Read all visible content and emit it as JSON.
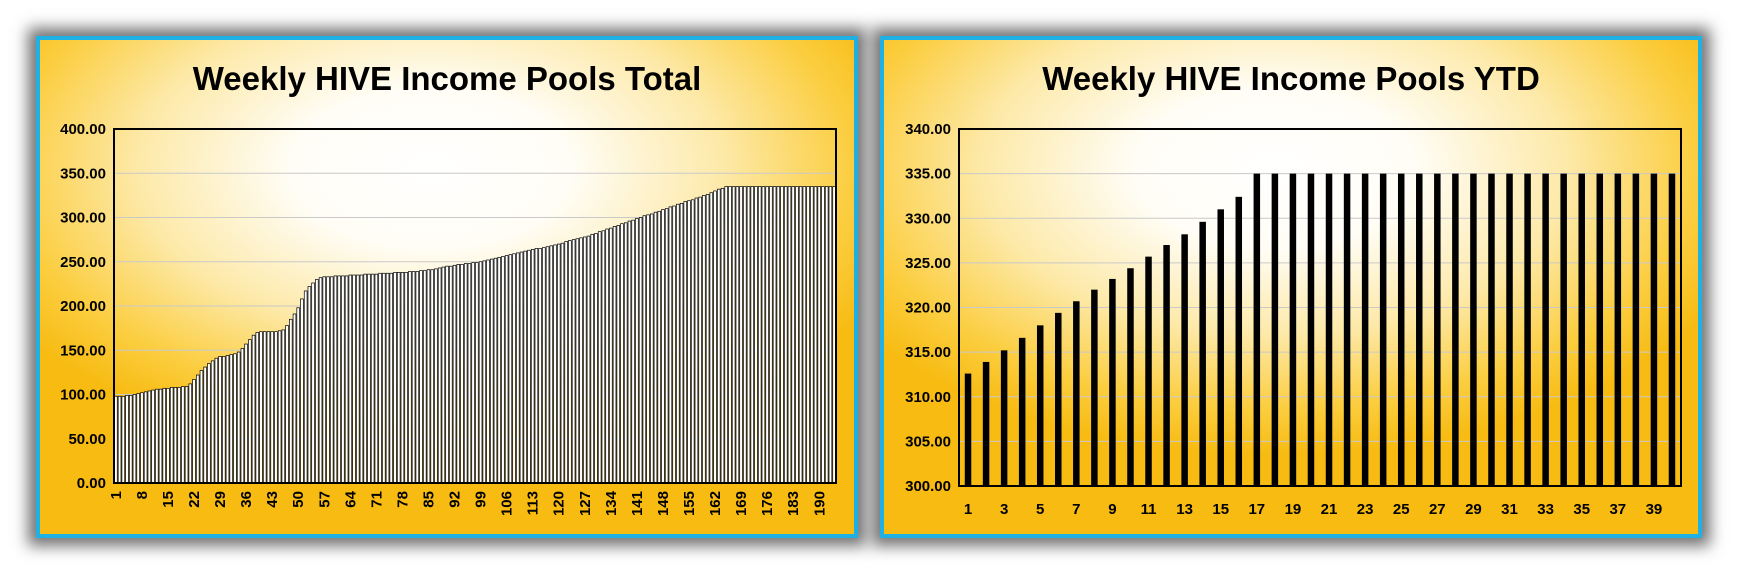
{
  "chart_data": [
    {
      "type": "bar",
      "title": "Weekly HIVE Income Pools Total",
      "xlabel": "",
      "ylabel": "",
      "ylim": [
        0,
        400
      ],
      "yticks": [
        "0.00",
        "50.00",
        "100.00",
        "150.00",
        "200.00",
        "250.00",
        "300.00",
        "350.00",
        "400.00"
      ],
      "x_tick_labels": [
        "1",
        "8",
        "15",
        "22",
        "29",
        "36",
        "43",
        "50",
        "57",
        "64",
        "71",
        "78",
        "85",
        "92",
        "99",
        "106",
        "113",
        "120",
        "127",
        "134",
        "141",
        "148",
        "155",
        "162",
        "169",
        "176",
        "183",
        "190"
      ],
      "grid": true,
      "categories": [
        "1",
        "2",
        "3",
        "4",
        "5",
        "6",
        "7",
        "8",
        "9",
        "10",
        "11",
        "12",
        "13",
        "14",
        "15",
        "16",
        "17",
        "18",
        "19",
        "20",
        "21",
        "22",
        "23",
        "24",
        "25",
        "26",
        "27",
        "28",
        "29",
        "30",
        "31",
        "32",
        "33",
        "34",
        "35",
        "36",
        "37",
        "38",
        "39",
        "40",
        "41",
        "42",
        "43",
        "44",
        "45",
        "46",
        "47",
        "48",
        "49",
        "50",
        "51",
        "52",
        "53",
        "54",
        "55",
        "56",
        "57",
        "58",
        "59",
        "60",
        "61",
        "62",
        "63",
        "64",
        "65",
        "66",
        "67",
        "68",
        "69",
        "70",
        "71",
        "72",
        "73",
        "74",
        "75",
        "76",
        "77",
        "78",
        "79",
        "80",
        "81",
        "82",
        "83",
        "84",
        "85",
        "86",
        "87",
        "88",
        "89",
        "90",
        "91",
        "92",
        "93",
        "94",
        "95",
        "96",
        "97",
        "98",
        "99",
        "100",
        "101",
        "102",
        "103",
        "104",
        "105",
        "106",
        "107",
        "108",
        "109",
        "110",
        "111",
        "112",
        "113",
        "114",
        "115",
        "116",
        "117",
        "118",
        "119",
        "120",
        "121",
        "122",
        "123",
        "124",
        "125",
        "126",
        "127",
        "128",
        "129",
        "130",
        "131",
        "132",
        "133",
        "134",
        "135",
        "136",
        "137",
        "138",
        "139",
        "140",
        "141",
        "142",
        "143",
        "144",
        "145",
        "146",
        "147",
        "148",
        "149",
        "150",
        "151",
        "152",
        "153",
        "154",
        "155",
        "156",
        "157",
        "158",
        "159",
        "160",
        "161",
        "162",
        "163",
        "164",
        "165",
        "166",
        "167",
        "168",
        "169",
        "170",
        "171",
        "172",
        "173",
        "174",
        "175",
        "176",
        "177",
        "178",
        "179",
        "180",
        "181",
        "182",
        "183",
        "184",
        "185",
        "186",
        "187",
        "188",
        "189",
        "190",
        "191",
        "192",
        "193",
        "194"
      ],
      "values": [
        98,
        98,
        98,
        99,
        99,
        100,
        101,
        102,
        103,
        104,
        105,
        106,
        106,
        107,
        107,
        108,
        108,
        108,
        109,
        109,
        112,
        117,
        122,
        127,
        131,
        135,
        138,
        141,
        143,
        143,
        144,
        145,
        146,
        148,
        152,
        157,
        162,
        167,
        170,
        171,
        171,
        171,
        171,
        171,
        172,
        173,
        178,
        185,
        191,
        198,
        208,
        217,
        222,
        226,
        230,
        232,
        233,
        233,
        233,
        234,
        234,
        234,
        234,
        235,
        235,
        235,
        235,
        236,
        236,
        236,
        236,
        237,
        237,
        237,
        237,
        238,
        238,
        238,
        238,
        239,
        239,
        239,
        240,
        240,
        241,
        241,
        242,
        243,
        244,
        245,
        245,
        246,
        247,
        247,
        248,
        248,
        249,
        249,
        250,
        251,
        252,
        253,
        254,
        255,
        256,
        257,
        258,
        259,
        260,
        261,
        262,
        263,
        264,
        265,
        265,
        266,
        267,
        268,
        269,
        270,
        271,
        273,
        274,
        275,
        276,
        277,
        278,
        279,
        281,
        282,
        284,
        285,
        287,
        288,
        290,
        291,
        293,
        294,
        296,
        297,
        299,
        300,
        302,
        303,
        304,
        306,
        307,
        309,
        310,
        312,
        313,
        315,
        316,
        318,
        319,
        320,
        322,
        323,
        325,
        326,
        328,
        330,
        332,
        333,
        335,
        335,
        335,
        335,
        335,
        335,
        335,
        335,
        335,
        335,
        335,
        335,
        335,
        335,
        335,
        335,
        335,
        335,
        335,
        335,
        335,
        335,
        335,
        335,
        335,
        335,
        335,
        335,
        335,
        335
      ]
    },
    {
      "type": "bar",
      "title": "Weekly HIVE Income Pools YTD",
      "xlabel": "",
      "ylabel": "",
      "ylim": [
        300,
        340
      ],
      "yticks": [
        "300.00",
        "305.00",
        "310.00",
        "315.00",
        "320.00",
        "325.00",
        "330.00",
        "335.00",
        "340.00"
      ],
      "x_tick_labels": [
        "1",
        "3",
        "5",
        "7",
        "9",
        "11",
        "13",
        "15",
        "17",
        "19",
        "21",
        "23",
        "25",
        "27",
        "29",
        "31",
        "33",
        "35",
        "37",
        "39"
      ],
      "grid": true,
      "categories": [
        "1",
        "2",
        "3",
        "4",
        "5",
        "6",
        "7",
        "8",
        "9",
        "10",
        "11",
        "12",
        "13",
        "14",
        "15",
        "16",
        "17",
        "18",
        "19",
        "20",
        "21",
        "22",
        "23",
        "24",
        "25",
        "26",
        "27",
        "28",
        "29",
        "30",
        "31",
        "32",
        "33",
        "34",
        "35",
        "36",
        "37",
        "38",
        "39",
        "40"
      ],
      "values": [
        312.6,
        313.9,
        315.2,
        316.6,
        318.0,
        319.4,
        320.7,
        322.0,
        323.2,
        324.4,
        325.7,
        327.0,
        328.2,
        329.6,
        331.0,
        332.4,
        335,
        335,
        335,
        335,
        335,
        335,
        335,
        335,
        335,
        335,
        335,
        335,
        335,
        335,
        335,
        335,
        335,
        335,
        335,
        335,
        335,
        335,
        335,
        335
      ]
    }
  ]
}
